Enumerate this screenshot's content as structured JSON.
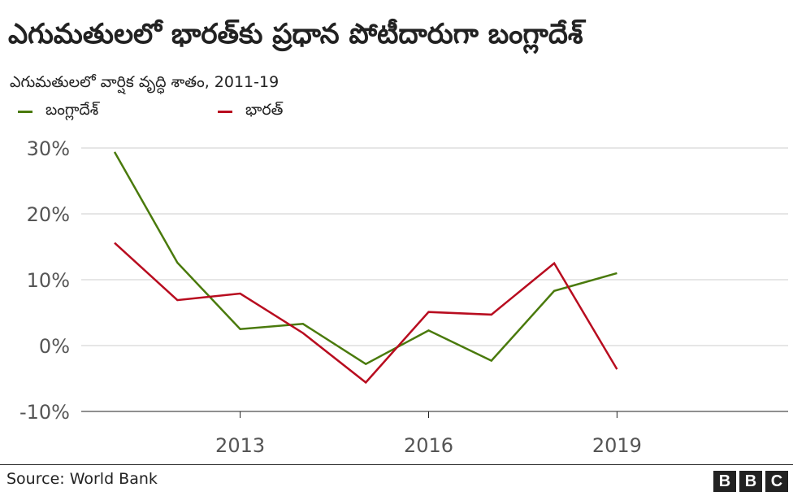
{
  "title": "ఎగుమతులలో భారత్‌కు ప్రధాన పోటీదారుగా బంగ్లాదేశ్",
  "subtitle": "ఎగుమతులలో వార్షిక వృద్ధి శాతం, 2011-19",
  "source": "Source: World Bank",
  "logo": "BBC",
  "chart_data": {
    "type": "line",
    "x": [
      2011,
      2012,
      2013,
      2014,
      2015,
      2016,
      2017,
      2018,
      2019
    ],
    "series": [
      {
        "name": "బంగ్లాదేశ్",
        "color": "#4a7a0c",
        "values": [
          29.4,
          12.6,
          2.5,
          3.3,
          -2.8,
          2.3,
          -2.3,
          8.3,
          11.0
        ]
      },
      {
        "name": "భారత్",
        "color": "#b80c1f",
        "values": [
          15.6,
          6.9,
          7.9,
          1.9,
          -5.6,
          5.1,
          4.7,
          12.5,
          -3.6
        ]
      }
    ],
    "ylim": [
      -10,
      30
    ],
    "yticks": [
      -10,
      0,
      10,
      20,
      30
    ],
    "ytick_labels": [
      "-10%",
      "0%",
      "10%",
      "20%",
      "30%"
    ],
    "xticks": [
      2013,
      2016,
      2019
    ],
    "xtick_labels": [
      "2013",
      "2016",
      "2019"
    ],
    "xlim": [
      2011,
      2021.5
    ],
    "grid": true,
    "legend_placement": "top-left"
  }
}
